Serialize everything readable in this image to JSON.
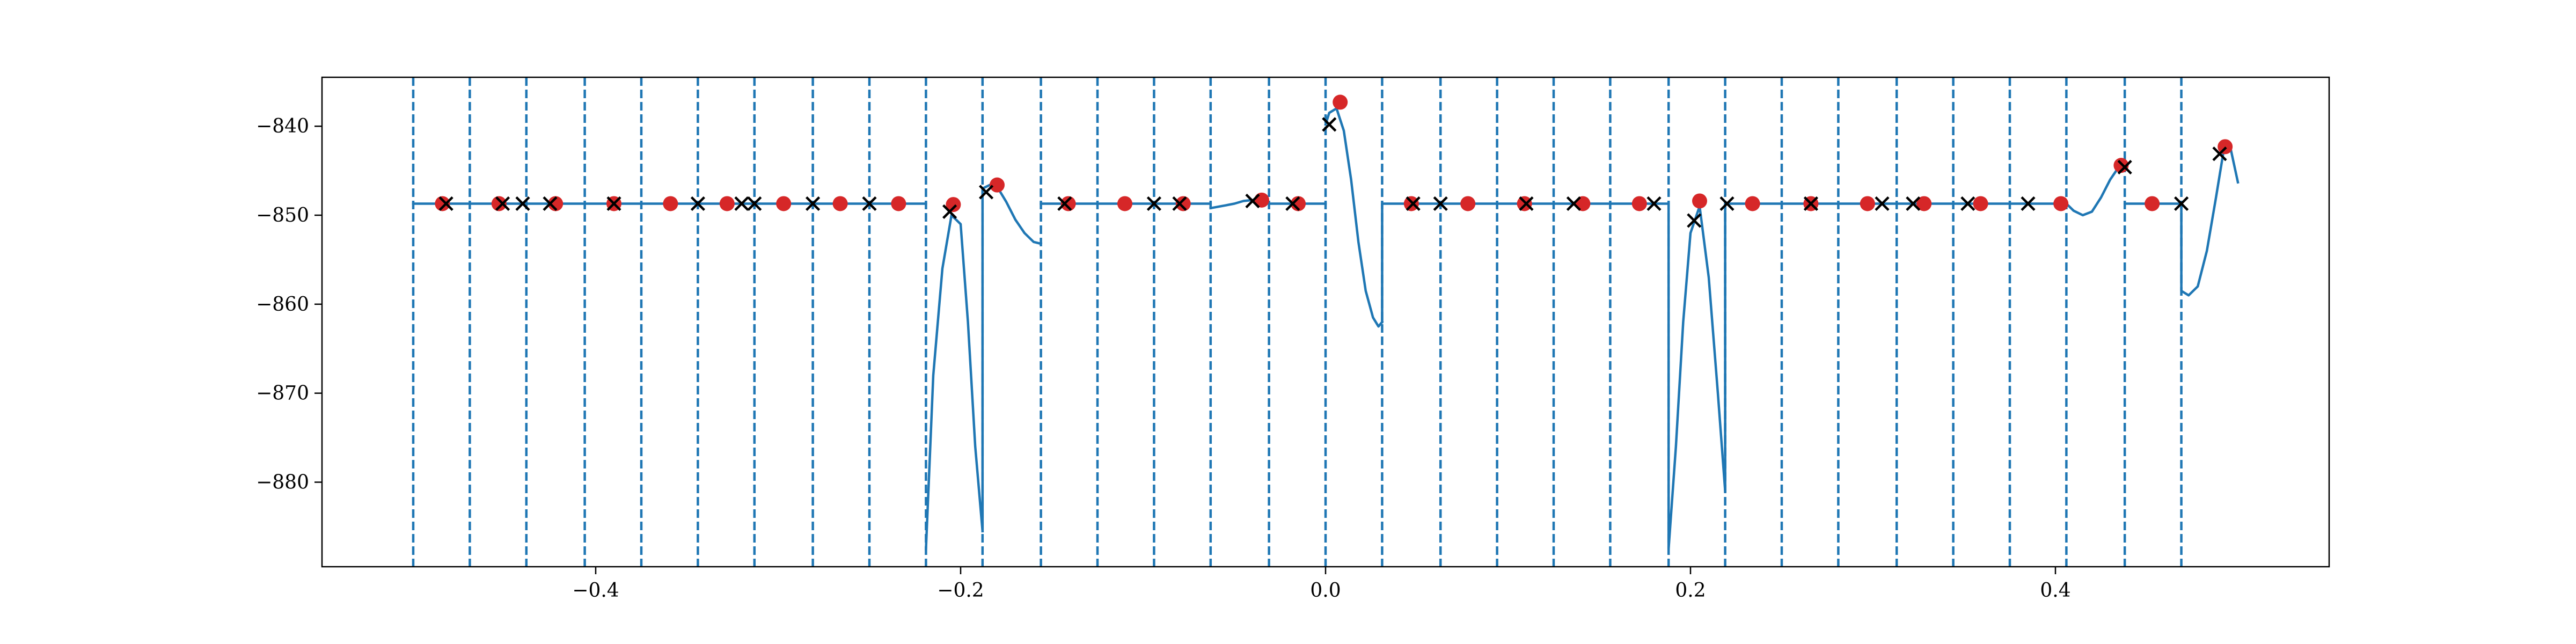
{
  "chart_data": {
    "type": "line",
    "title": "",
    "xlabel": "",
    "ylabel": "",
    "xlim": [
      -0.55,
      0.55
    ],
    "ylim": [
      -889.5,
      -834.5
    ],
    "x_ticks": [
      -0.4,
      -0.2,
      0.0,
      0.2,
      0.4
    ],
    "x_tick_labels": [
      "−0.4",
      "−0.2",
      "0.0",
      "0.2",
      "0.4"
    ],
    "y_ticks": [
      -840,
      -850,
      -860,
      -870,
      -880
    ],
    "y_tick_labels": [
      "−840",
      "−850",
      "−860",
      "−870",
      "−880"
    ],
    "grid": false,
    "legend": "none",
    "colors": {
      "line": "#1f77b4",
      "boundary": "#1f77b4",
      "red_points": "#d62728",
      "x_markers": "#000000",
      "axes": "#000000"
    },
    "boundaries": [
      -0.5,
      -0.469,
      -0.438,
      -0.406,
      -0.375,
      -0.344,
      -0.313,
      -0.281,
      -0.25,
      -0.219,
      -0.188,
      -0.156,
      -0.125,
      -0.094,
      -0.063,
      -0.031,
      0.0,
      0.031,
      0.063,
      0.094,
      0.125,
      0.156,
      0.188,
      0.219,
      0.25,
      0.281,
      0.313,
      0.344,
      0.375,
      0.406,
      0.438,
      0.469
    ],
    "series": [
      {
        "segments": [
          {
            "x": [
              -0.5,
              -0.219
            ],
            "y": [
              -848.7,
              -848.7
            ]
          },
          {
            "x": [
              -0.219,
              -0.215,
              -0.21,
              -0.205,
              -0.2,
              -0.196,
              -0.192,
              -0.188
            ],
            "y": [
              -887.5,
              -868,
              -856,
              -850,
              -851,
              -862,
              -876,
              -885.5
            ]
          },
          {
            "x": [
              -0.188,
              -0.188,
              -0.184,
              -0.18,
              -0.175,
              -0.17,
              -0.165,
              -0.16,
              -0.156
            ],
            "y": [
              -885.5,
              -847,
              -846.6,
              -846.8,
              -848.5,
              -850.5,
              -852,
              -853,
              -853.2
            ]
          },
          {
            "x": [
              -0.156,
              -0.063
            ],
            "y": [
              -848.7,
              -848.7
            ]
          },
          {
            "x": [
              -0.063,
              -0.055,
              -0.05,
              -0.045,
              -0.04,
              -0.035,
              -0.031
            ],
            "y": [
              -849.2,
              -848.9,
              -848.7,
              -848.4,
              -848.3,
              -848.4,
              -848.7
            ]
          },
          {
            "x": [
              -0.031,
              0.0
            ],
            "y": [
              -848.7,
              -848.7
            ]
          },
          {
            "x": [
              0.0,
              0.002,
              0.006,
              0.01,
              0.014,
              0.018,
              0.022,
              0.026,
              0.029,
              0.031
            ],
            "y": [
              -839.8,
              -838.5,
              -838,
              -840.5,
              -846,
              -853,
              -858.5,
              -861.5,
              -862.5,
              -862
            ]
          },
          {
            "x": [
              0.031,
              0.031,
              0.188
            ],
            "y": [
              -862,
              -848.7,
              -848.7
            ]
          },
          {
            "x": [
              0.188,
              0.188,
              0.192,
              0.196,
              0.2,
              0.205,
              0.21,
              0.215,
              0.219
            ],
            "y": [
              -848.7,
              -887.5,
              -876,
              -862,
              -852,
              -849,
              -857,
              -870,
              -881
            ]
          },
          {
            "x": [
              0.219,
              0.219,
              0.406
            ],
            "y": [
              -881,
              -848.7,
              -848.7
            ]
          },
          {
            "x": [
              0.406,
              0.41,
              0.415,
              0.42,
              0.425,
              0.43,
              0.435,
              0.438
            ],
            "y": [
              -848.7,
              -849.5,
              -850,
              -849.6,
              -848,
              -846,
              -844.5,
              -844.7
            ]
          },
          {
            "x": [
              0.438,
              0.469
            ],
            "y": [
              -848.7,
              -848.7
            ]
          },
          {
            "x": [
              0.469,
              0.469,
              0.473,
              0.478,
              0.483,
              0.488,
              0.492,
              0.496,
              0.5
            ],
            "y": [
              -848.7,
              -858.5,
              -859,
              -858,
              -854,
              -848,
              -843,
              -842.5,
              -846.3
            ]
          }
        ]
      }
    ],
    "red_points": {
      "x": [
        -0.484,
        -0.453,
        -0.422,
        -0.39,
        -0.359,
        -0.328,
        -0.297,
        -0.266,
        -0.234,
        -0.204,
        -0.18,
        -0.141,
        -0.11,
        -0.078,
        -0.035,
        -0.015,
        0.008,
        0.047,
        0.078,
        0.109,
        0.141,
        0.172,
        0.205,
        0.234,
        0.266,
        0.297,
        0.328,
        0.359,
        0.403,
        0.436,
        0.453,
        0.493
      ],
      "y": [
        -848.7,
        -848.7,
        -848.7,
        -848.7,
        -848.7,
        -848.7,
        -848.7,
        -848.7,
        -848.7,
        -848.8,
        -846.6,
        -848.7,
        -848.7,
        -848.7,
        -848.3,
        -848.7,
        -837.3,
        -848.7,
        -848.7,
        -848.7,
        -848.7,
        -848.7,
        -848.4,
        -848.7,
        -848.7,
        -848.7,
        -848.7,
        -848.7,
        -848.7,
        -844.4,
        -848.7,
        -842.3
      ]
    },
    "x_markers": {
      "x": [
        -0.482,
        -0.451,
        -0.44,
        -0.425,
        -0.39,
        -0.344,
        -0.32,
        -0.313,
        -0.281,
        -0.25,
        -0.206,
        -0.186,
        -0.143,
        -0.094,
        -0.08,
        -0.04,
        -0.018,
        0.002,
        0.048,
        0.063,
        0.11,
        0.136,
        0.18,
        0.202,
        0.22,
        0.266,
        0.305,
        0.322,
        0.352,
        0.385,
        0.438,
        0.469,
        0.49
      ],
      "y": [
        -848.7,
        -848.7,
        -848.7,
        -848.7,
        -848.7,
        -848.7,
        -848.7,
        -848.7,
        -848.7,
        -848.7,
        -849.6,
        -847.4,
        -848.7,
        -848.7,
        -848.7,
        -848.4,
        -848.7,
        -839.8,
        -848.7,
        -848.7,
        -848.7,
        -848.7,
        -848.7,
        -850.6,
        -848.7,
        -848.7,
        -848.7,
        -848.7,
        -848.7,
        -848.7,
        -844.6,
        -848.7,
        -843.1
      ]
    }
  }
}
